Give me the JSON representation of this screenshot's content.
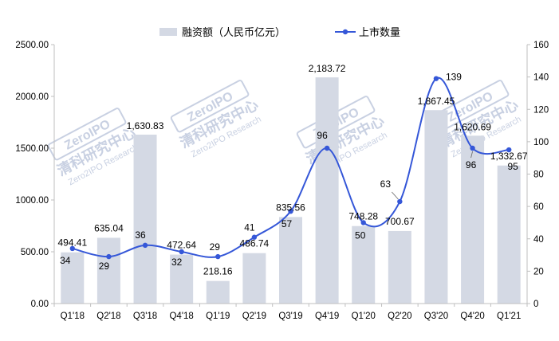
{
  "chart_data": {
    "type": "bar",
    "categories": [
      "Q1'18",
      "Q2'18",
      "Q3'18",
      "Q4'18",
      "Q1'19",
      "Q2'19",
      "Q3'19",
      "Q4'19",
      "Q1'20",
      "Q2'20",
      "Q3'20",
      "Q4'20",
      "Q1'21"
    ],
    "series": [
      {
        "name": "融资额（人民币亿元）",
        "type": "bar",
        "axis": "left",
        "values": [
          494.41,
          635.04,
          1630.83,
          472.64,
          218.16,
          486.74,
          835.56,
          2183.72,
          748.28,
          700.67,
          1867.45,
          1620.69,
          1332.67
        ],
        "labels": [
          "494.41",
          "635.04",
          "1,630.83",
          "472.64",
          "218.16",
          "486.74",
          "835.56",
          "2,183.72",
          "748.28",
          "700.67",
          "1,867.45",
          "1,620.69",
          "1,332.67"
        ]
      },
      {
        "name": "上市数量",
        "type": "line",
        "axis": "right",
        "values": [
          34,
          29,
          36,
          32,
          29,
          41,
          57,
          96,
          50,
          63,
          139,
          96,
          95
        ],
        "labels": [
          "34",
          "29",
          "36",
          "32",
          "29",
          "41",
          "57",
          "96",
          "50",
          "63",
          "139",
          "96",
          "95"
        ]
      }
    ],
    "yleft": {
      "lim": [
        0,
        2500
      ],
      "ticks": [
        0,
        500,
        1000,
        1500,
        2000,
        2500
      ],
      "tick_labels": [
        "0.00",
        "500.00",
        "1000.00",
        "1500.00",
        "2000.00",
        "2500.00"
      ]
    },
    "yright": {
      "lim": [
        0,
        160
      ],
      "ticks": [
        0,
        20,
        40,
        60,
        80,
        100,
        120,
        140,
        160
      ],
      "tick_labels": [
        "0",
        "20",
        "40",
        "60",
        "80",
        "100",
        "120",
        "140",
        "160"
      ]
    },
    "legend_position": "top-center",
    "grid": false
  },
  "colors": {
    "bar": "#d4d9e4",
    "line": "#3557d8",
    "axis": "#bfbfbf",
    "text": "#000000",
    "watermark": "#c3ccdf"
  },
  "watermark": {
    "logo_text": "ZeroIPO",
    "cn_text": "清科研究中心",
    "en_text": "Zero2IPO Research"
  }
}
